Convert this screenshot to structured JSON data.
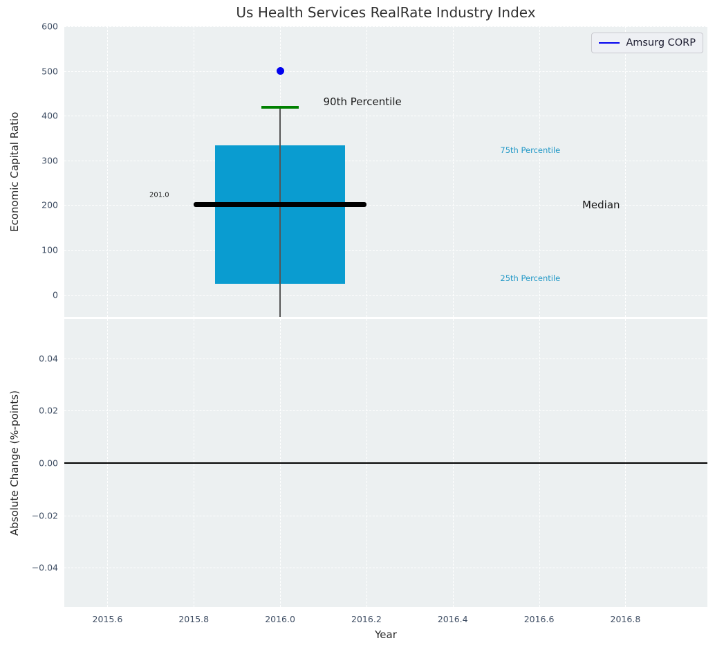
{
  "title": "Us Health Services RealRate Industry Index",
  "legend": {
    "items": [
      {
        "label": "Amsurg CORP",
        "color": "#0101ef"
      }
    ]
  },
  "colors": {
    "plot_bg": "#ecf0f1",
    "grid": "#ffffff",
    "box_fill": "#0a9cd0",
    "median_line": "#000000",
    "percentile_cap": "#008000",
    "whisker": "#555555",
    "marker": "#0101ef",
    "tick_label": "#3e4d63",
    "axis_label": "#262626",
    "annotation_cyan": "#2499c7",
    "annotation_dark": "#1a1a1a",
    "zero_line": "#000000"
  },
  "chart_data": [
    {
      "type": "boxplot",
      "panel": "top",
      "title": "Us Health Services RealRate Industry Index",
      "ylabel": "Economic Capital Ratio",
      "xlabel": "",
      "xlim": [
        2015.5,
        2016.99
      ],
      "ylim": [
        -50,
        600
      ],
      "grid": true,
      "xticks": [
        2015.6,
        2015.8,
        2016.0,
        2016.2,
        2016.4,
        2016.6,
        2016.8
      ],
      "yticks": [
        0,
        100,
        200,
        300,
        400,
        500,
        600
      ],
      "ytick_labels": [
        "0",
        "100",
        "200",
        "300",
        "400",
        "500",
        "600"
      ],
      "box": {
        "x": 2016.0,
        "q1": 25,
        "median": 201.0,
        "q3": 334,
        "p90": 419,
        "whisker_low_clipped_at_axis": true,
        "box_halfwidth": 0.15,
        "median_halfwidth": 0.2,
        "cap_halfwidth": 0.043
      },
      "series": [
        {
          "name": "Amsurg CORP",
          "marker": "dot",
          "points": [
            {
              "x": 2016.0,
              "y": 500
            }
          ]
        }
      ],
      "annotations": [
        {
          "text": "201.0",
          "x": 2015.72,
          "y": 222,
          "anchor": "center",
          "size": 10,
          "color": "dark"
        },
        {
          "text": "90th Percentile",
          "x": 2016.1,
          "y": 432,
          "anchor": "left",
          "size": 15,
          "color": "dark"
        },
        {
          "text": "75th Percentile",
          "x": 2016.51,
          "y": 323,
          "anchor": "left",
          "size": 11.5,
          "color": "cyan"
        },
        {
          "text": "Median",
          "x": 2016.7,
          "y": 201,
          "anchor": "left",
          "size": 15,
          "color": "dark"
        },
        {
          "text": "25th Percentile",
          "x": 2016.51,
          "y": 36,
          "anchor": "left",
          "size": 11.5,
          "color": "cyan"
        }
      ]
    },
    {
      "type": "line",
      "panel": "bottom",
      "ylabel": "Absolute Change (%-points)",
      "xlabel": "Year",
      "xlim": [
        2015.5,
        2016.99
      ],
      "ylim": [
        -0.055,
        0.055
      ],
      "grid": true,
      "xticks": [
        2015.6,
        2015.8,
        2016.0,
        2016.2,
        2016.4,
        2016.6,
        2016.8
      ],
      "xtick_labels": [
        "2015.6",
        "2015.8",
        "2016.0",
        "2016.2",
        "2016.4",
        "2016.6",
        "2016.8"
      ],
      "yticks": [
        0.04,
        0.02,
        0.0,
        -0.02,
        -0.04
      ],
      "ytick_labels": [
        "0.04",
        "0.02",
        "0.00",
        "−0.02",
        "−0.04"
      ],
      "zero_line": 0.0,
      "series": []
    }
  ]
}
